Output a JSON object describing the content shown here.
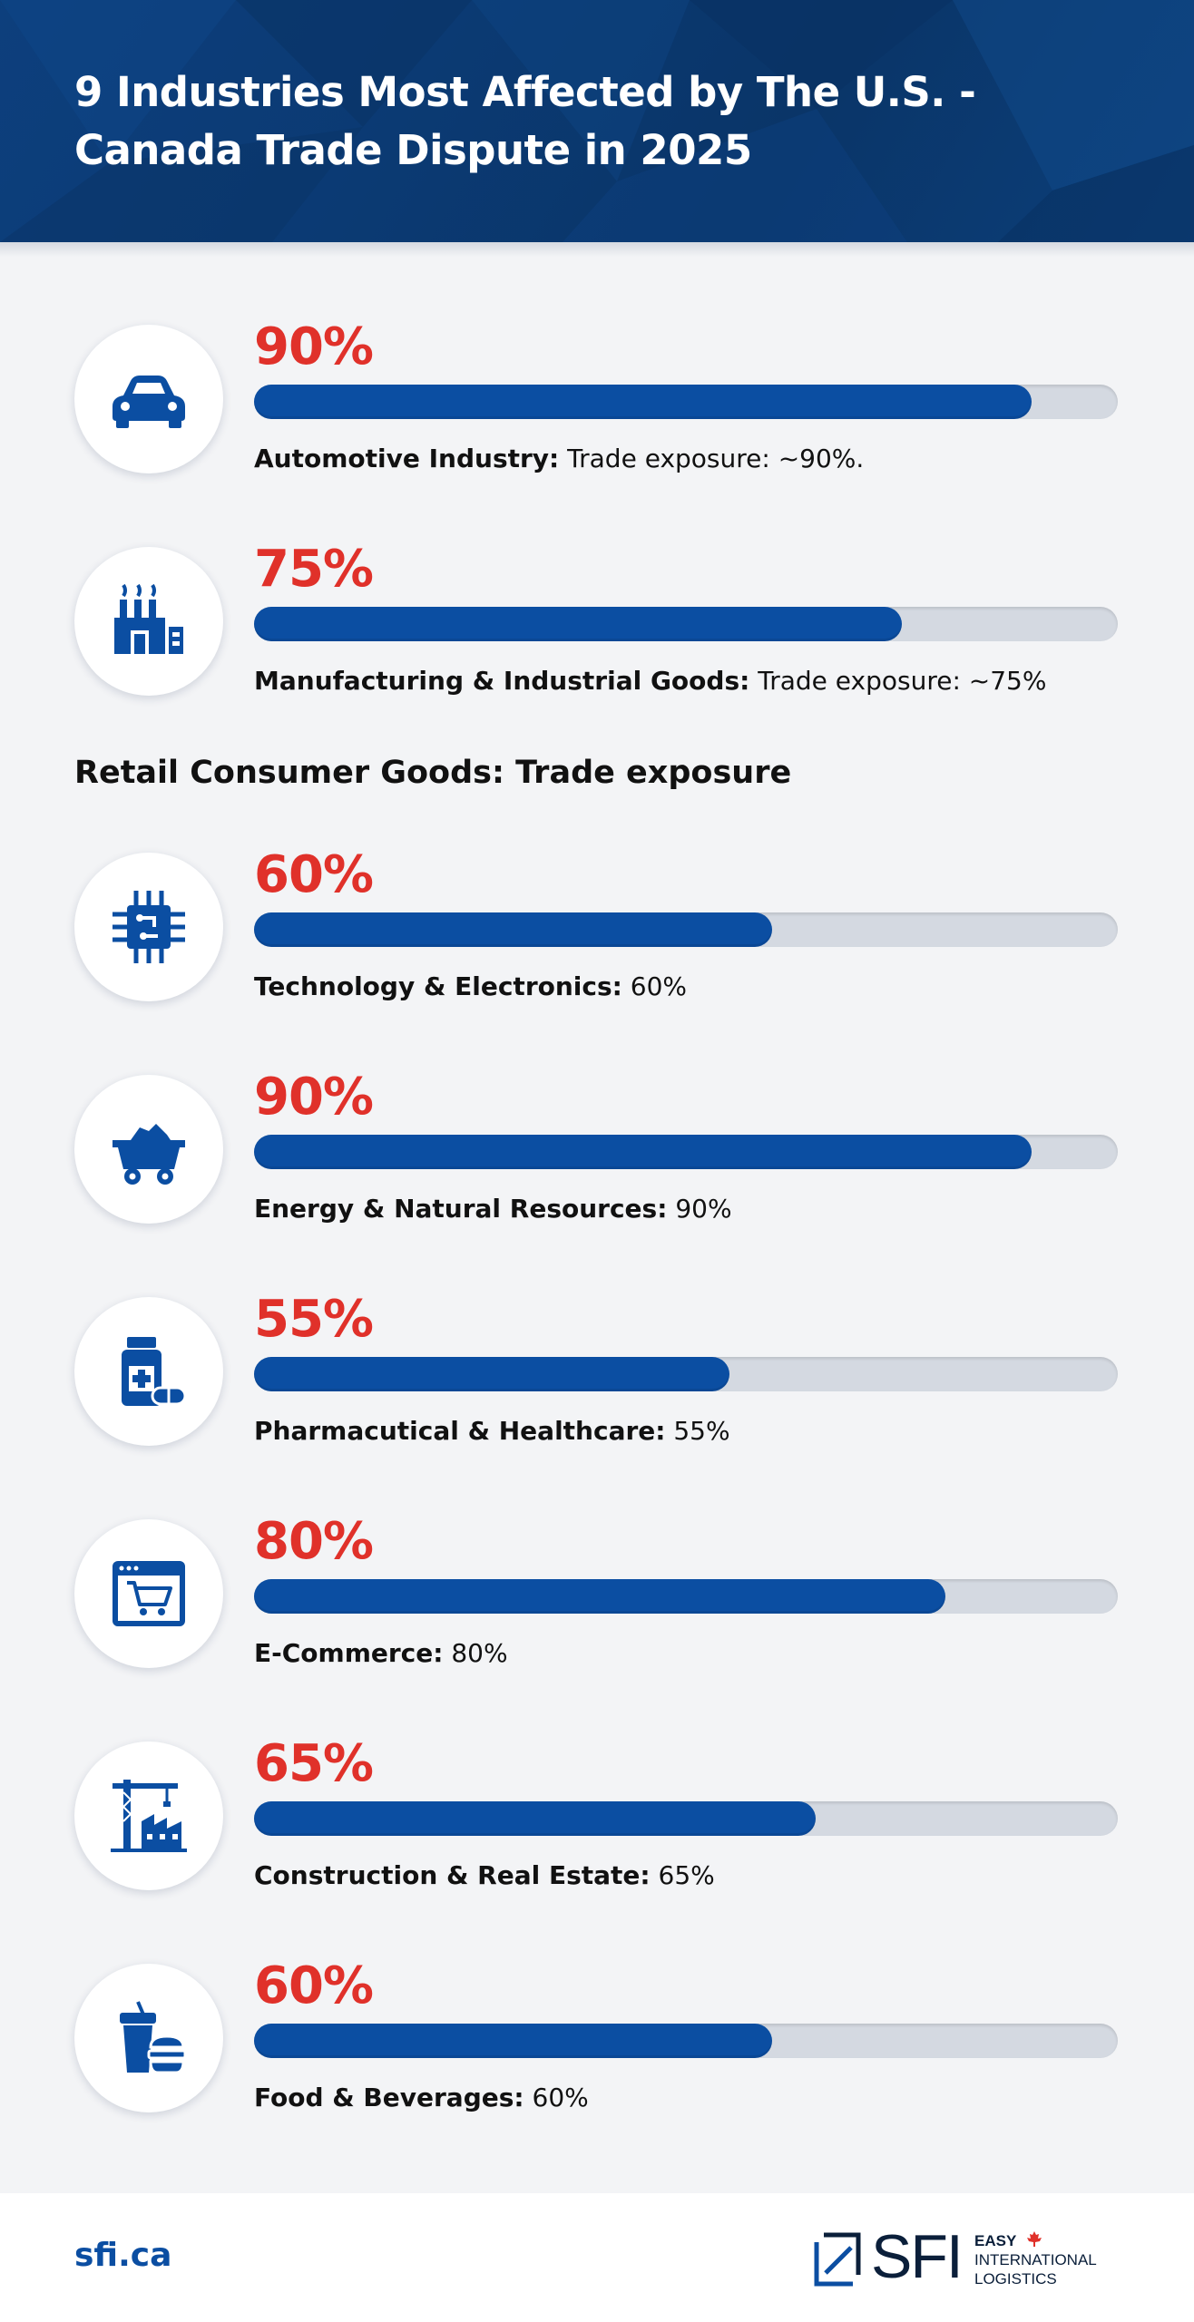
{
  "header": {
    "title": "9 Industries Most Affected by The U.S. - Canada Trade Dispute in 2025"
  },
  "section_heading": "Retail Consumer Goods: Trade exposure",
  "chart_data": {
    "type": "bar",
    "orientation": "horizontal",
    "title": "9 Industries Most Affected by The U.S. - Canada Trade Dispute in 2025",
    "xlim": [
      0,
      100
    ],
    "unit": "%",
    "categories": [
      "Automotive Industry",
      "Manufacturing & Industrial Goods",
      "Technology & Electronics",
      "Energy & Natural Resources",
      "Pharmacutical & Healthcare",
      "E-Commerce",
      "Construction & Real Estate",
      "Food & Beverages"
    ],
    "values": [
      90,
      75,
      60,
      90,
      55,
      80,
      65,
      60
    ]
  },
  "rows": [
    {
      "icon": "car-icon",
      "value": 90,
      "pct_label": "90%",
      "name": "Automotive Industry:",
      "detail": "  Trade exposure: ~90%."
    },
    {
      "icon": "factory-icon",
      "value": 75,
      "pct_label": "75%",
      "name": "Manufacturing & Industrial Goods:",
      "detail": " Trade exposure: ~75%"
    },
    {
      "icon": "microchip-icon",
      "value": 60,
      "pct_label": "60%",
      "name": "Technology & Electronics:",
      "detail": " 60%"
    },
    {
      "icon": "mine-cart-icon",
      "value": 90,
      "pct_label": "90%",
      "name": "Energy & Natural Resources:",
      "detail": " 90%"
    },
    {
      "icon": "medicine-icon",
      "value": 55,
      "pct_label": "55%",
      "name": "Pharmacutical & Healthcare:",
      "detail": " 55%"
    },
    {
      "icon": "shopping-cart-icon",
      "value": 80,
      "pct_label": "80%",
      "name": "E-Commerce:",
      "detail": " 80%"
    },
    {
      "icon": "construction-icon",
      "value": 65,
      "pct_label": "65%",
      "name": "Construction & Real Estate:",
      "detail": " 65%"
    },
    {
      "icon": "food-drink-icon",
      "value": 60,
      "pct_label": "60%",
      "name": "Food & Beverages:",
      "detail": " 60%"
    }
  ],
  "footer": {
    "site": "sfi.ca",
    "logo_name": "SFI",
    "logo_tag_1": "EASY",
    "logo_tag_2": "INTERNATIONAL",
    "logo_tag_3": "LOGISTICS"
  },
  "colors": {
    "header_bg": "#0b3a73",
    "percent_text": "#e0312a",
    "bar_fill": "#0b4ea2",
    "bar_track": "#d4d9e1",
    "icon": "#0b4ea2"
  }
}
